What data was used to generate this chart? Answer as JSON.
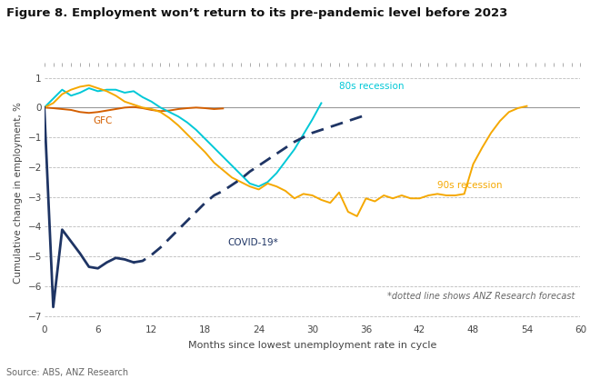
{
  "title": "Figure 8. Employment won’t return to its pre-pandemic level before 2023",
  "xlabel": "Months since lowest unemployment rate in cycle",
  "ylabel": "Cumulative change in employment, %",
  "source": "Source: ABS, ANZ Research",
  "footnote": "*dotted line shows ANZ Research forecast",
  "xlim": [
    0,
    60
  ],
  "ylim": [
    -7.2,
    1.5
  ],
  "xticks": [
    0,
    6,
    12,
    18,
    24,
    30,
    36,
    42,
    48,
    54,
    60
  ],
  "yticks": [
    -7,
    -6,
    -5,
    -4,
    -3,
    -2,
    -1,
    0,
    1
  ],
  "bg_color": "#ffffff",
  "colors": {
    "recession_80s": "#00c8d7",
    "recession_90s": "#f5a800",
    "gfc": "#d45f00",
    "covid": "#1e3464"
  },
  "recession_80s_x": [
    0,
    1,
    2,
    3,
    4,
    5,
    6,
    7,
    8,
    9,
    10,
    11,
    12,
    13,
    14,
    15,
    16,
    17,
    18,
    19,
    20,
    21,
    22,
    23,
    24,
    25,
    26,
    27,
    28,
    29,
    30,
    31
  ],
  "recession_80s_y": [
    0,
    0.3,
    0.6,
    0.4,
    0.5,
    0.65,
    0.55,
    0.6,
    0.6,
    0.5,
    0.55,
    0.35,
    0.2,
    0.0,
    -0.15,
    -0.3,
    -0.5,
    -0.75,
    -1.05,
    -1.35,
    -1.65,
    -1.95,
    -2.25,
    -2.55,
    -2.65,
    -2.5,
    -2.2,
    -1.8,
    -1.4,
    -0.9,
    -0.4,
    0.15
  ],
  "recession_90s_x": [
    0,
    1,
    2,
    3,
    4,
    5,
    6,
    7,
    8,
    9,
    10,
    11,
    12,
    13,
    14,
    15,
    16,
    17,
    18,
    19,
    20,
    21,
    22,
    23,
    24,
    25,
    26,
    27,
    28,
    29,
    30,
    31,
    32,
    33,
    34,
    35,
    36,
    37,
    38,
    39,
    40,
    41,
    42,
    43,
    44,
    45,
    46,
    47,
    48,
    49,
    50,
    51,
    52,
    53,
    54
  ],
  "recession_90s_y": [
    0,
    0.15,
    0.45,
    0.6,
    0.7,
    0.75,
    0.65,
    0.55,
    0.4,
    0.2,
    0.1,
    0.0,
    -0.05,
    -0.15,
    -0.35,
    -0.6,
    -0.9,
    -1.2,
    -1.5,
    -1.85,
    -2.1,
    -2.35,
    -2.5,
    -2.65,
    -2.75,
    -2.55,
    -2.65,
    -2.8,
    -3.05,
    -2.9,
    -2.95,
    -3.1,
    -3.2,
    -2.85,
    -3.5,
    -3.65,
    -3.05,
    -3.15,
    -2.95,
    -3.05,
    -2.95,
    -3.05,
    -3.05,
    -2.95,
    -2.9,
    -2.95,
    -2.95,
    -2.9,
    -1.9,
    -1.35,
    -0.85,
    -0.45,
    -0.15,
    -0.02,
    0.05
  ],
  "gfc_x": [
    0,
    1,
    2,
    3,
    4,
    5,
    6,
    7,
    8,
    9,
    10,
    11,
    12,
    13,
    14,
    15,
    16,
    17,
    18,
    19,
    20
  ],
  "gfc_y": [
    0,
    -0.02,
    -0.05,
    -0.08,
    -0.15,
    -0.18,
    -0.15,
    -0.1,
    -0.05,
    0.0,
    0.02,
    -0.02,
    -0.08,
    -0.12,
    -0.1,
    -0.05,
    -0.02,
    0.0,
    -0.02,
    -0.05,
    -0.03
  ],
  "covid_solid_x": [
    0,
    1,
    2,
    3,
    4,
    5,
    6,
    7,
    8,
    9,
    10
  ],
  "covid_solid_y": [
    0,
    -6.7,
    -4.1,
    -4.5,
    -4.9,
    -5.35,
    -5.4,
    -5.2,
    -5.05,
    -5.1,
    -5.2
  ],
  "covid_dashed_x": [
    10,
    11,
    12,
    13,
    14,
    15,
    16,
    17,
    18,
    19,
    20,
    21,
    22,
    23,
    24,
    25,
    26,
    27,
    28,
    29,
    30,
    31,
    32,
    33,
    34,
    35,
    36
  ],
  "covid_dashed_y": [
    -5.2,
    -5.15,
    -4.95,
    -4.7,
    -4.4,
    -4.1,
    -3.8,
    -3.5,
    -3.2,
    -2.95,
    -2.8,
    -2.6,
    -2.4,
    -2.15,
    -1.95,
    -1.75,
    -1.55,
    -1.35,
    -1.15,
    -1.0,
    -0.85,
    -0.75,
    -0.65,
    -0.55,
    -0.45,
    -0.35,
    -0.25
  ],
  "label_80s_recession": "80s recession",
  "label_90s_recession": "90s recession",
  "label_gfc": "GFC",
  "label_covid": "COVID-19*"
}
